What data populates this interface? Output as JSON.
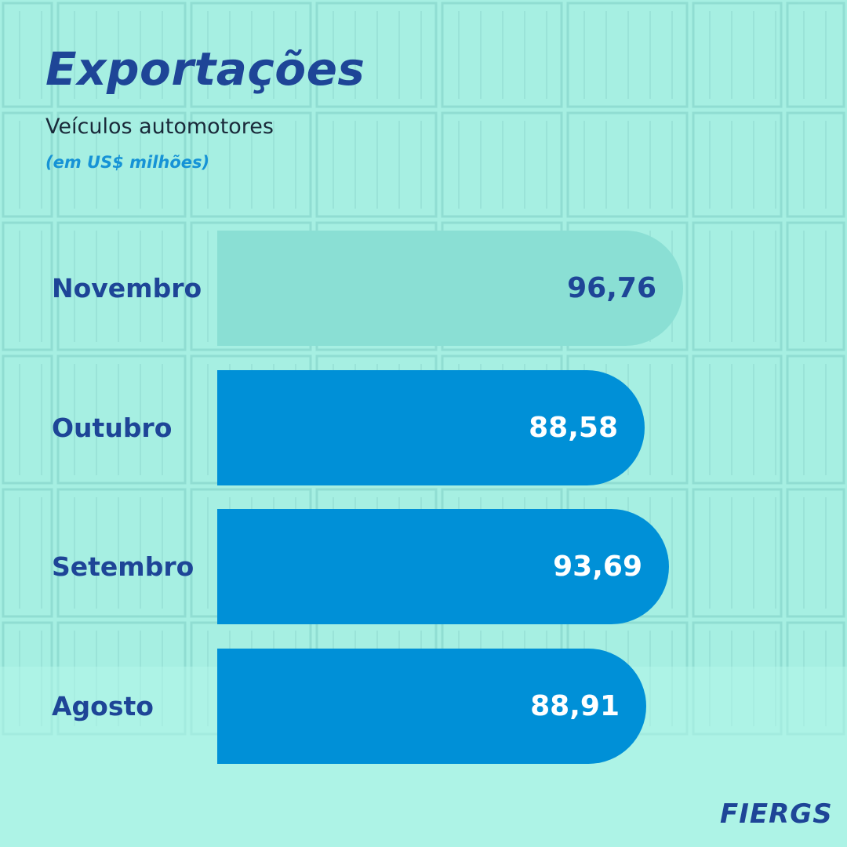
{
  "header": {
    "title": "Exportações",
    "subtitle": "Veículos automotores",
    "unit": "(em US$ milhões)"
  },
  "brand": {
    "logo": "FIERGS"
  },
  "colors": {
    "highlight_bar": "#8adfd4",
    "highlight_value": "#1e4597",
    "bar": "#0090d7",
    "bar_value": "#ffffff",
    "label": "#1e4597"
  },
  "chart_data": {
    "type": "bar",
    "orientation": "horizontal",
    "categories": [
      "Novembro",
      "Outubro",
      "Setembro",
      "Agosto"
    ],
    "values": [
      96.76,
      88.58,
      93.69,
      88.91
    ],
    "value_labels": [
      "96,76",
      "88,58",
      "93,69",
      "88,91"
    ],
    "highlight_index": 0,
    "title": "Exportações",
    "xlabel": "",
    "ylabel": ""
  }
}
